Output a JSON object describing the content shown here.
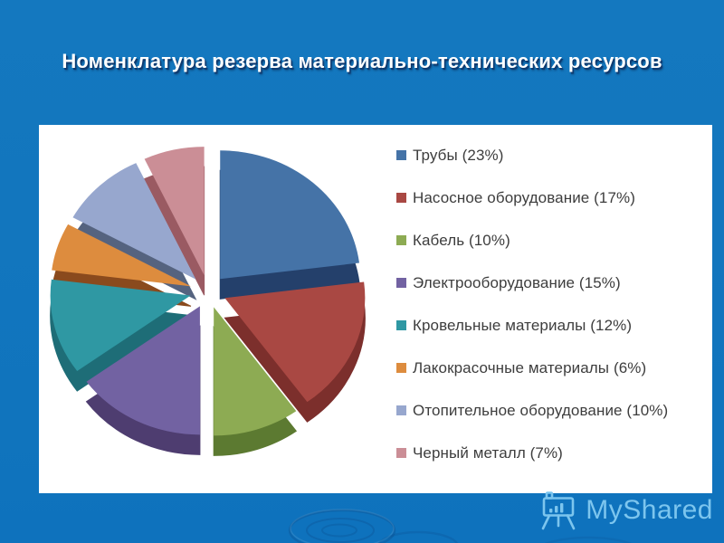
{
  "slide": {
    "title": "Номенклатура резерва материально-технических ресурсов"
  },
  "theme": {
    "background": "#1478bf",
    "panel": "#ffffff",
    "title_color": "#ffffff",
    "title_shadow": "#0e3a70",
    "legend_text": "#3d3d3d",
    "watermark_color": "#7cc5ee"
  },
  "watermark": {
    "brand": "MyShared",
    "icon": "presentation-easel-icon"
  },
  "chart_data": {
    "type": "pie",
    "style": "3d-exploded",
    "start_angle_deg": 0,
    "direction": "clockwise",
    "legend_position": "right",
    "title": "",
    "series": [
      {
        "label": "Трубы",
        "value": 23,
        "display": "Трубы (23%)",
        "color": "#4573a7",
        "side_color": "#24406b"
      },
      {
        "label": "Насосное оборудование",
        "value": 17,
        "display": "Насосное оборудование (17%)",
        "color": "#a94843",
        "side_color": "#7c2f2c"
      },
      {
        "label": "Кабель",
        "value": 10,
        "display": "Кабель (10%)",
        "color": "#8dab53",
        "side_color": "#5c7a31"
      },
      {
        "label": "Электрооборудование",
        "value": 15,
        "display": "Электрооборудование (15%)",
        "color": "#7262a2",
        "side_color": "#4e3d70"
      },
      {
        "label": "Кровельные материалы",
        "value": 12,
        "display": "Кровельные материалы (12%)",
        "color": "#2f98a3",
        "side_color": "#1e6d77"
      },
      {
        "label": "Лакокрасочные материалы",
        "value": 6,
        "display": "Лакокрасочные материалы (6%)",
        "color": "#dd8c3e",
        "side_color": "#8a4a1d"
      },
      {
        "label": "Отопительное оборудование",
        "value": 10,
        "display": "Отопительное оборудование (10%)",
        "color": "#97a7ce",
        "side_color": "#55637f"
      },
      {
        "label": "Черный металл",
        "value": 7,
        "display": "Черный металл (7%)",
        "color": "#cb8e96",
        "side_color": "#9a5a62"
      }
    ]
  }
}
